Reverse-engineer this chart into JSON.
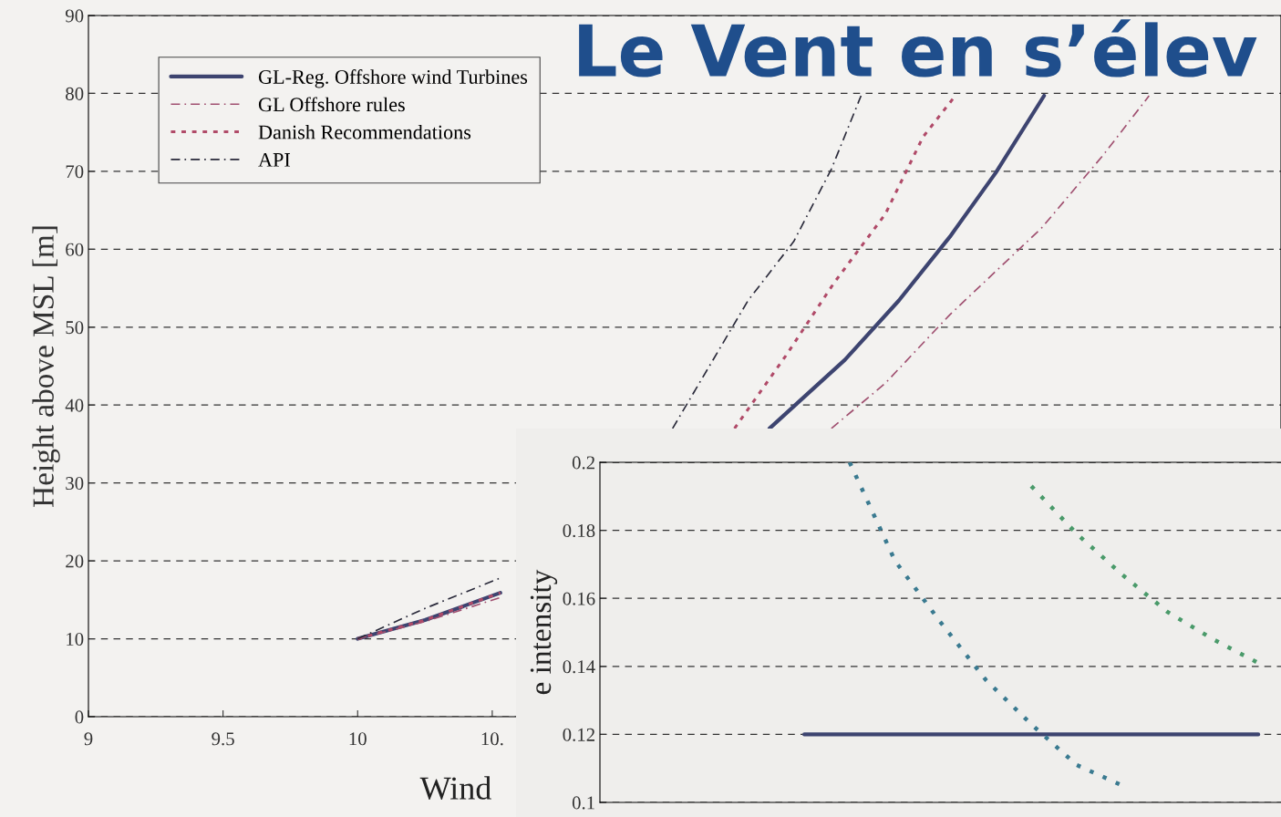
{
  "chart_data": [
    {
      "type": "line",
      "title": "Le Vent en s’élev",
      "xlabel": "Wind",
      "ylabel": "Height above MSL [m]",
      "xlim": [
        9,
        13.43
      ],
      "xticks": [
        9,
        9.5,
        10,
        {
          "value": 10.5,
          "label": "10."
        }
      ],
      "ylim": [
        0,
        90
      ],
      "yticks": [
        0,
        10,
        20,
        30,
        40,
        50,
        60,
        70,
        80,
        90
      ],
      "grid": "y",
      "legend": "top left",
      "series": [
        {
          "name": "GL-Reg. Offshore wind Turbines",
          "color": "#3d4470",
          "line_style": "solid",
          "x": [
            10,
            10.25,
            10.53,
            11.0,
            11.53,
            11.81,
            12.01,
            12.2,
            12.37,
            12.55
          ],
          "values": [
            10,
            12.4,
            15.9,
            null,
            37,
            45.8,
            53.4,
            61.6,
            69.8,
            79.7
          ]
        },
        {
          "name": "GL Offshore rules",
          "color": "#a05070",
          "line_style": "dashdot",
          "x": [
            10,
            10.25,
            10.53,
            11.0,
            11.76,
            11.96,
            12.2,
            12.54,
            12.77,
            12.94
          ],
          "values": [
            10,
            12.2,
            15.3,
            null,
            37,
            42.8,
            51.6,
            62.7,
            72.1,
            79.7
          ]
        },
        {
          "name": "Danish Recommendations",
          "color": "#b04a68",
          "line_style": "dashed",
          "x": [
            10,
            10.25,
            10.53,
            11.0,
            11.4,
            11.59,
            11.77,
            11.96,
            12.1,
            12.22
          ],
          "values": [
            10,
            12.4,
            15.9,
            null,
            37,
            46.3,
            55.7,
            64.5,
            74.4,
            79.7
          ]
        },
        {
          "name": "API",
          "color": "#2a2a3a",
          "line_style": "dashdot",
          "x": [
            10,
            10.25,
            10.53,
            11.0,
            11.17,
            11.45,
            11.62,
            11.76,
            11.87
          ],
          "values": [
            10,
            13.9,
            17.8,
            null,
            37,
            53.4,
            61,
            70.3,
            79.7
          ]
        }
      ]
    },
    {
      "type": "line",
      "ylabel": "e intensity",
      "categories": [
        null,
        null,
        null,
        null,
        null,
        null,
        null,
        null,
        null,
        null,
        null,
        null,
        null,
        null,
        null
      ],
      "ylim": [
        0.1,
        0.2
      ],
      "yticks": [
        {
          "value": 0.1,
          "label": "0.1"
        },
        0.12,
        0.14,
        0.16,
        0.18,
        {
          "value": 0.2,
          "label": "0.2"
        }
      ],
      "grid": "y",
      "series": [
        {
          "color": "#3d4470",
          "line_style": "solid",
          "values": [
            null,
            null,
            null,
            null,
            0.12,
            0.12,
            0.12,
            0.12,
            0.12,
            0.12,
            0.12,
            0.12,
            0.12,
            0.12,
            0.12
          ]
        },
        {
          "color": "#3a7a90",
          "line_style": "dotted",
          "values": [
            null,
            null,
            null,
            null,
            null,
            0.2,
            0.171,
            0.153,
            0.136,
            0.123,
            0.111,
            0.105,
            null,
            null,
            null
          ]
        },
        {
          "color": "#4a9a6a",
          "line_style": "dotted",
          "values": [
            null,
            null,
            null,
            null,
            null,
            null,
            null,
            null,
            null,
            0.193,
            0.179,
            0.167,
            0.156,
            0.148,
            0.141
          ]
        }
      ]
    }
  ]
}
